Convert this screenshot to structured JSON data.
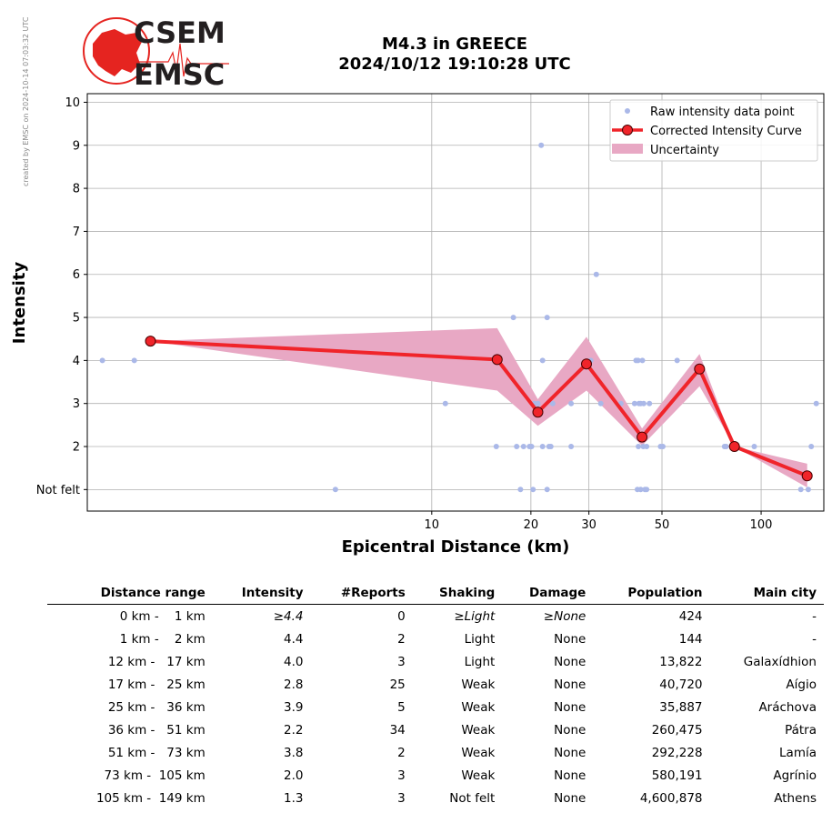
{
  "watermark": "created by EMSC on 2024-10-14 07:03:32 UTC",
  "logo": {
    "line1": "CSEM",
    "line2": "EMSC",
    "color_red": "#e52420",
    "color_dark": "#231f20"
  },
  "title_line1": "M4.3 in GREECE",
  "title_line2": "2024/10/12 19:10:28 UTC",
  "chart_data": {
    "type": "scatter",
    "xlabel": "Epicentral Distance (km)",
    "ylabel": "Intensity",
    "xscale": "log",
    "xlim": [
      0.9,
      155
    ],
    "ylim": [
      0.5,
      10.2
    ],
    "xticks": [
      10,
      20,
      30,
      50,
      100
    ],
    "xtick_labels": [
      "10",
      "20",
      "30",
      "50",
      "100"
    ],
    "yticks": [
      1,
      2,
      3,
      4,
      5,
      6,
      7,
      8,
      9,
      10
    ],
    "ytick_labels": [
      "Not felt",
      "2",
      "3",
      "4",
      "5",
      "6",
      "7",
      "8",
      "9",
      "10"
    ],
    "grid": true,
    "legend_position": "top-right",
    "legend": [
      "Raw intensity data point",
      "Corrected Intensity Curve",
      "Uncertainty"
    ],
    "colors": {
      "raw": "#aab8e8",
      "curve": "#f0242a",
      "marker_edge": "#4a0000",
      "uncertainty": "#e8a8c4"
    },
    "raw_points": [
      [
        1.0,
        4
      ],
      [
        1.25,
        4
      ],
      [
        5.1,
        1
      ],
      [
        11,
        3
      ],
      [
        15.7,
        2
      ],
      [
        17.7,
        5
      ],
      [
        18.1,
        2
      ],
      [
        18.6,
        1
      ],
      [
        19,
        2
      ],
      [
        19.8,
        2
      ],
      [
        20.1,
        2
      ],
      [
        20.3,
        1
      ],
      [
        20.5,
        3
      ],
      [
        21,
        3
      ],
      [
        21.5,
        9
      ],
      [
        21.7,
        4
      ],
      [
        21.7,
        2
      ],
      [
        22.4,
        1
      ],
      [
        22.4,
        5
      ],
      [
        22.7,
        2
      ],
      [
        23,
        2
      ],
      [
        23.3,
        3
      ],
      [
        26.5,
        2
      ],
      [
        26.5,
        3
      ],
      [
        30.4,
        4
      ],
      [
        31.6,
        6
      ],
      [
        32.6,
        3
      ],
      [
        37.5,
        3
      ],
      [
        41.3,
        3
      ],
      [
        41.7,
        4
      ],
      [
        42.1,
        1
      ],
      [
        42.3,
        4
      ],
      [
        42.4,
        2
      ],
      [
        42.6,
        3
      ],
      [
        43.1,
        3
      ],
      [
        43.1,
        1
      ],
      [
        43.6,
        4
      ],
      [
        43.9,
        2
      ],
      [
        44,
        3
      ],
      [
        44.4,
        1
      ],
      [
        44.9,
        2
      ],
      [
        44.9,
        1
      ],
      [
        45.8,
        3
      ],
      [
        49.5,
        2
      ],
      [
        50.3,
        2
      ],
      [
        55.6,
        4
      ],
      [
        77.4,
        2
      ],
      [
        78.3,
        2
      ],
      [
        95.3,
        2
      ],
      [
        132,
        1
      ],
      [
        139,
        1
      ],
      [
        142,
        2
      ],
      [
        147,
        3
      ]
    ],
    "curve": {
      "x": [
        1.4,
        15.8,
        21,
        29.5,
        43.5,
        65,
        83,
        138
      ],
      "y": [
        4.45,
        4.02,
        2.8,
        3.92,
        2.22,
        3.8,
        2.0,
        1.32
      ]
    },
    "uncertainty": {
      "x": [
        1.4,
        15.8,
        21,
        29.5,
        43.5,
        65,
        83,
        138
      ],
      "lower": [
        4.45,
        3.3,
        2.48,
        3.3,
        2.02,
        3.4,
        2.0,
        1.05
      ],
      "upper": [
        4.45,
        4.75,
        3.1,
        4.55,
        2.42,
        4.15,
        2.0,
        1.6
      ]
    }
  },
  "table": {
    "headers": [
      "Distance range",
      "Intensity",
      "#Reports",
      "Shaking",
      "Damage",
      "Population",
      "Main city"
    ],
    "rows": [
      [
        "0 km -    1 km",
        "≥4.4",
        "0",
        "≥Light",
        "≥None",
        "424",
        "-"
      ],
      [
        "1 km -    2 km",
        "4.4",
        "2",
        "Light",
        "None",
        "144",
        "-"
      ],
      [
        "12 km -   17 km",
        "4.0",
        "3",
        "Light",
        "None",
        "13,822",
        "Galaxídhion"
      ],
      [
        "17 km -   25 km",
        "2.8",
        "25",
        "Weak",
        "None",
        "40,720",
        "Aígio"
      ],
      [
        "25 km -   36 km",
        "3.9",
        "5",
        "Weak",
        "None",
        "35,887",
        "Aráchova"
      ],
      [
        "36 km -   51 km",
        "2.2",
        "34",
        "Weak",
        "None",
        "260,475",
        "Pátra"
      ],
      [
        "51 km -   73 km",
        "3.8",
        "2",
        "Weak",
        "None",
        "292,228",
        "Lamía"
      ],
      [
        "73 km -  105 km",
        "2.0",
        "3",
        "Weak",
        "None",
        "580,191",
        "Agrínio"
      ],
      [
        "105 km -  149 km",
        "1.3",
        "3",
        "Not felt",
        "None",
        "4,600,878",
        "Athens"
      ]
    ]
  }
}
